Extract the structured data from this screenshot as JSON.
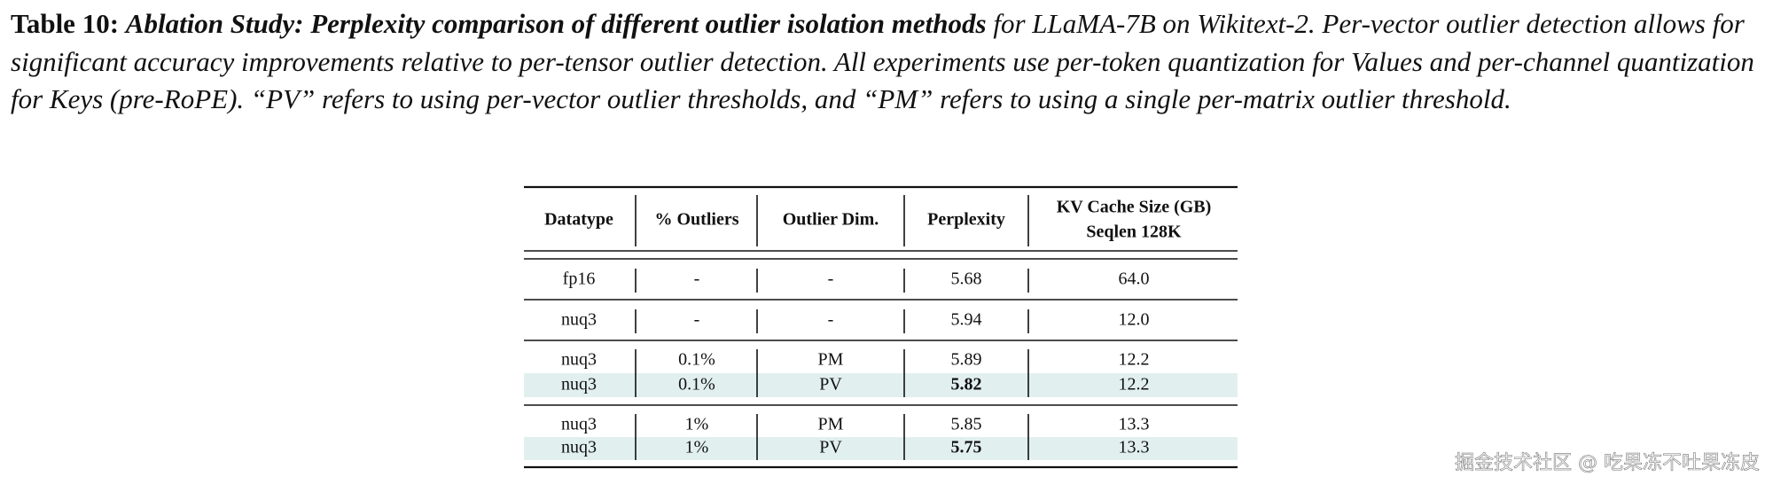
{
  "caption": {
    "label": "Table 10:",
    "title": "Ablation Study: Perplexity comparison of different outlier isolation methods",
    "body": "for LLaMA-7B on Wikitext-2. Per-vector outlier detection allows for significant accuracy improvements relative to per-tensor outlier detection. All experiments use per-token quantization for Values and per-channel quantization for Keys (pre-RoPE). “PV” refers to using per-vector outlier thresholds, and “PM” refers to using a single per-matrix outlier threshold."
  },
  "table": {
    "header": [
      [
        "Datatype"
      ],
      [
        "% Outliers"
      ],
      [
        "Outlier Dim."
      ],
      [
        "Perplexity"
      ],
      [
        "KV Cache Size (GB)",
        "Seqlen 128K"
      ]
    ],
    "rows": [
      [
        "fp16",
        "-",
        "-",
        "5.68",
        "64.0"
      ],
      [
        "nuq3",
        "-",
        "-",
        "5.94",
        "12.0"
      ],
      [
        "nuq3",
        "0.1%",
        "PM",
        "5.89",
        "12.2"
      ],
      [
        "nuq3",
        "0.1%",
        "PV",
        "5.82",
        "12.2"
      ],
      [
        "nuq3",
        "1%",
        "PM",
        "5.85",
        "13.3"
      ],
      [
        "nuq3",
        "1%",
        "PV",
        "5.75",
        "13.3"
      ]
    ]
  },
  "watermark": "掘金技术社区 @ 吃果冻不吐果冻皮"
}
